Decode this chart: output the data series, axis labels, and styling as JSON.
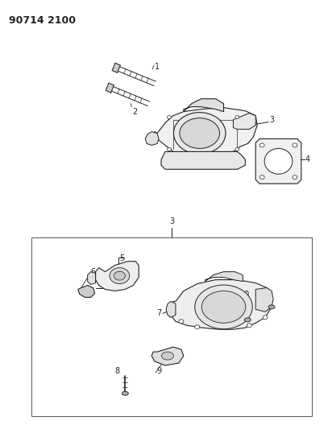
{
  "title": "90714 2100",
  "bg_color": "#ffffff",
  "lc": "#222222",
  "fig_width": 4.12,
  "fig_height": 5.33,
  "dpi": 100
}
